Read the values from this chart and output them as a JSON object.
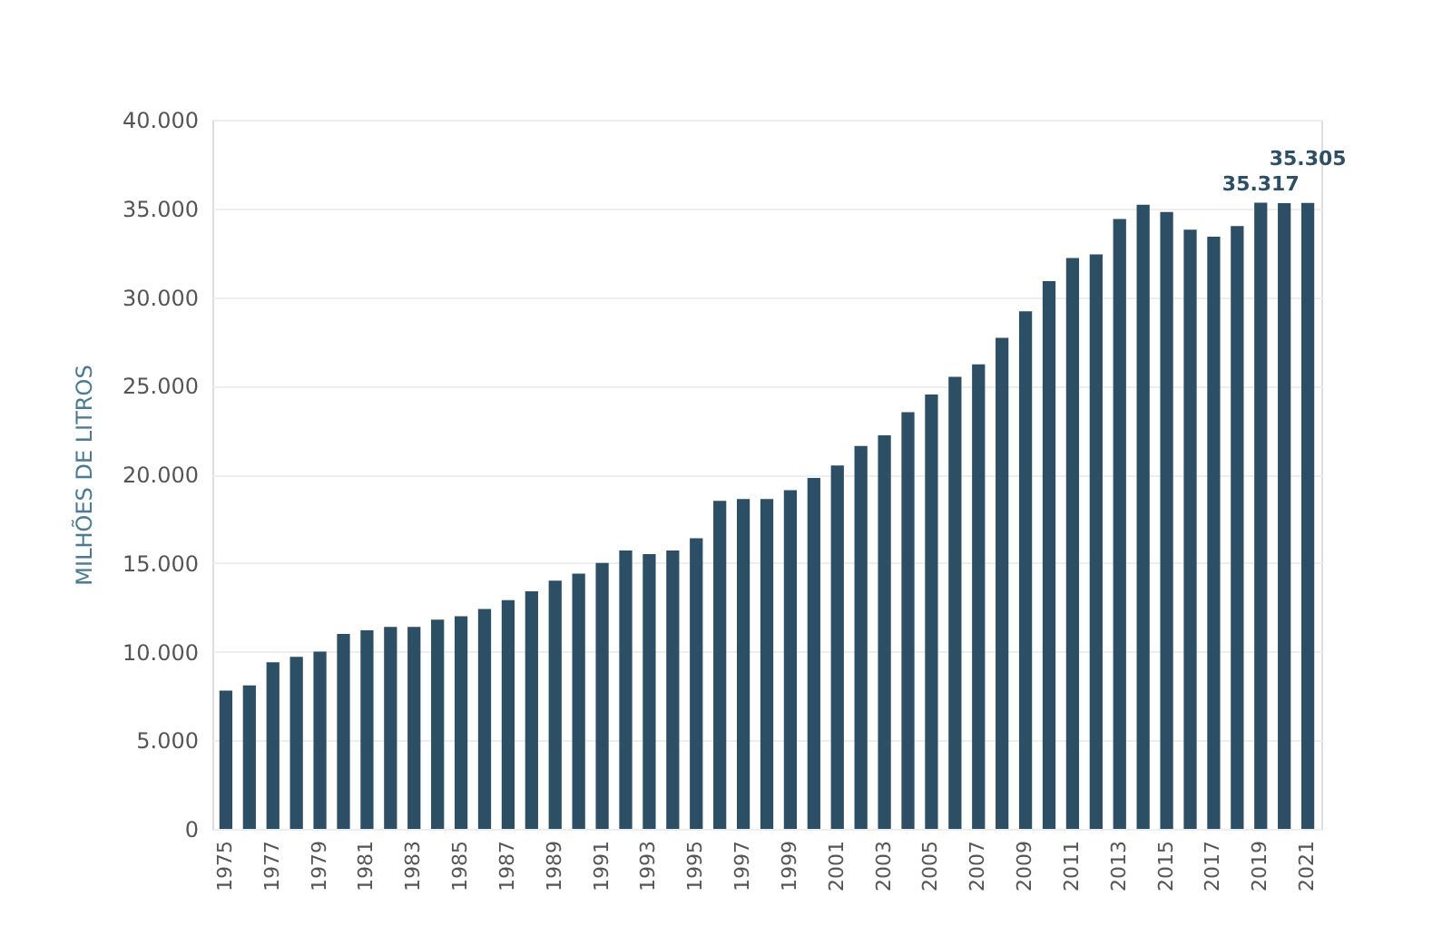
{
  "chart_data": {
    "type": "bar",
    "ylabel": "MILHÕES DE LITROS",
    "categories": [
      "1975",
      null,
      "1977",
      null,
      "1979",
      null,
      "1981",
      null,
      "1983",
      null,
      "1985",
      null,
      "1987",
      null,
      "1989",
      null,
      "1991",
      null,
      "1993",
      null,
      "1995",
      null,
      "1997",
      null,
      "1999",
      null,
      "2001",
      null,
      "2003",
      null,
      "2005",
      null,
      "2007",
      null,
      "2009",
      null,
      "2011",
      null,
      "2013",
      null,
      "2015",
      null,
      "2017",
      null,
      "2019",
      null,
      "2021"
    ],
    "values": [
      7800,
      8100,
      9400,
      9700,
      10000,
      11000,
      11200,
      11400,
      11400,
      11800,
      12000,
      12400,
      12900,
      13400,
      14000,
      14400,
      15000,
      15700,
      15500,
      15700,
      16400,
      18500,
      18600,
      18600,
      19100,
      19800,
      20500,
      21600,
      22200,
      23500,
      24500,
      25500,
      26200,
      27700,
      29200,
      30900,
      32200,
      32400,
      34400,
      35200,
      34800,
      33800,
      33400,
      34000,
      35317,
      35300,
      35305
    ],
    "value_labels": [
      null,
      null,
      null,
      null,
      null,
      null,
      null,
      null,
      null,
      null,
      null,
      null,
      null,
      null,
      null,
      null,
      null,
      null,
      null,
      null,
      null,
      null,
      null,
      null,
      null,
      null,
      null,
      null,
      null,
      null,
      null,
      null,
      null,
      null,
      null,
      null,
      null,
      null,
      null,
      null,
      null,
      null,
      null,
      null,
      "35.317",
      null,
      "35.305"
    ],
    "color": "#2d4f66",
    "ylim": [
      0,
      40000
    ],
    "yticks": [
      0,
      {
        "value": 5000,
        "label": "5.000"
      },
      {
        "value": 10000,
        "label": "10.000"
      },
      {
        "value": 15000,
        "label": "15.000"
      },
      {
        "value": 20000,
        "label": "20.000"
      },
      {
        "value": 25000,
        "label": "25.000"
      },
      {
        "value": 30000,
        "label": "30.000"
      },
      {
        "value": 35000,
        "label": "35.000"
      },
      {
        "value": 40000,
        "label": "40.000"
      }
    ],
    "grid": "y"
  }
}
